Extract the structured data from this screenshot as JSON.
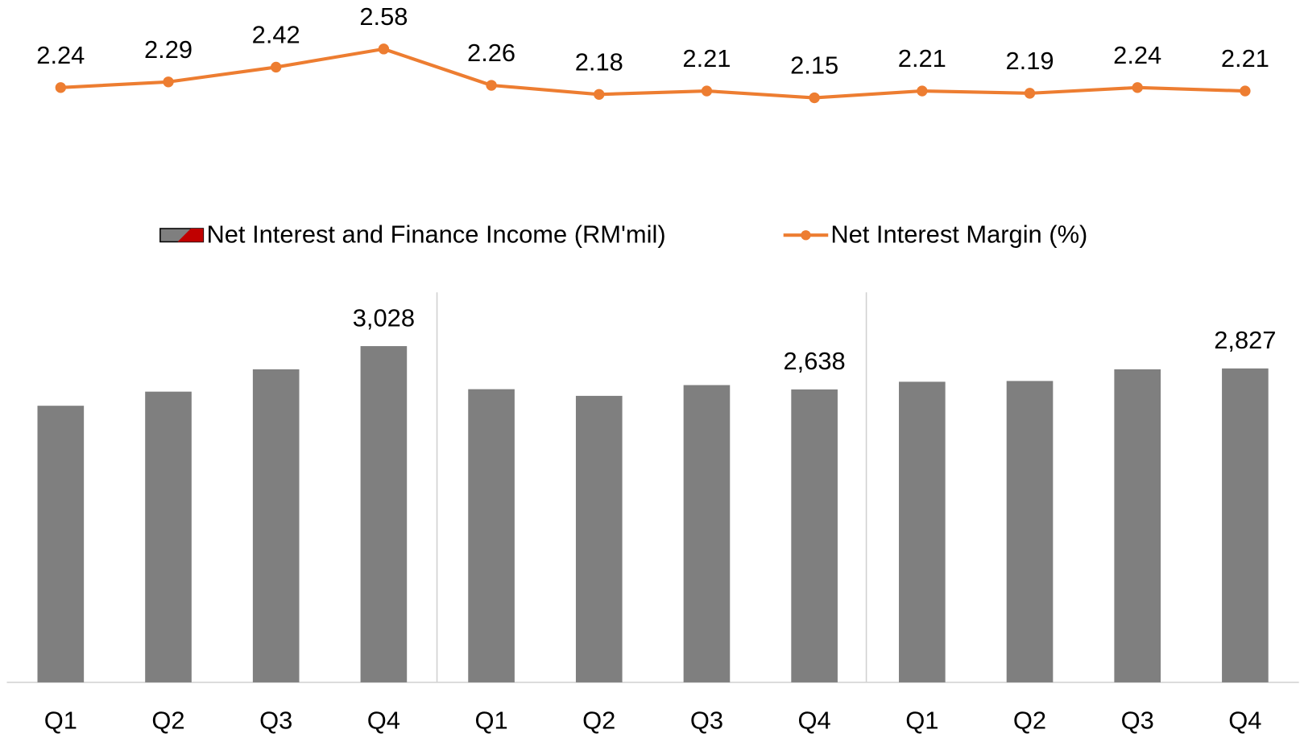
{
  "chart_data": {
    "type": "bar+line",
    "categories": [
      "Q1",
      "Q2",
      "Q3",
      "Q4",
      "Q1",
      "Q2",
      "Q3",
      "Q4",
      "Q1",
      "Q2",
      "Q3",
      "Q4"
    ],
    "series": [
      {
        "name": "Net Interest and Finance Income (RM'mil)",
        "type": "bar",
        "color": "#7f7f7f",
        "values": [
          2491,
          2618,
          2819,
          3028,
          2640,
          2580,
          2677,
          2638,
          2707,
          2714,
          2819,
          2827
        ],
        "value_labels": [
          null,
          null,
          null,
          "3,028",
          null,
          null,
          null,
          "2,638",
          null,
          null,
          null,
          "2,827"
        ]
      },
      {
        "name": "Net Interest Margin (%)",
        "type": "line",
        "axis": "y2",
        "color": "#ed7d31",
        "values": [
          2.24,
          2.29,
          2.42,
          2.58,
          2.26,
          2.18,
          2.21,
          2.15,
          2.21,
          2.19,
          2.24,
          2.21
        ]
      }
    ],
    "ylim": [
      0,
      6000
    ],
    "y2lim": [
      -3,
      2.87
    ],
    "legend": "top"
  }
}
